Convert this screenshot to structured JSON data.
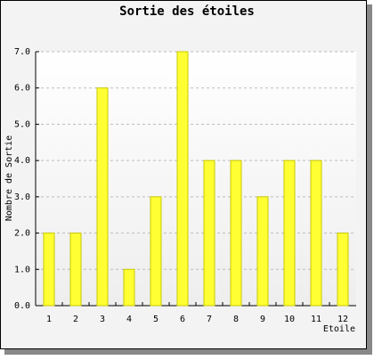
{
  "chart_data": {
    "type": "bar",
    "title": "Sortie des étoiles",
    "x_label": "Etoile",
    "y_label": "Nombre de Sortie",
    "categories": [
      "1",
      "2",
      "3",
      "4",
      "5",
      "6",
      "7",
      "8",
      "9",
      "10",
      "11",
      "12"
    ],
    "values": [
      2,
      2,
      6,
      1,
      3,
      7,
      4,
      4,
      3,
      4,
      4,
      2
    ],
    "color": "#ffff33",
    "ylim": [
      0,
      7
    ],
    "yticks": [
      {
        "value": 0,
        "label": "0.0"
      },
      {
        "value": 1,
        "label": "1.0"
      },
      {
        "value": 2,
        "label": "2.0"
      },
      {
        "value": 3,
        "label": "3.0"
      },
      {
        "value": 4,
        "label": "4.0"
      },
      {
        "value": 5,
        "label": "5.0"
      },
      {
        "value": 6,
        "label": "6.0"
      },
      {
        "value": 7,
        "label": "7.0"
      }
    ],
    "grid": true
  }
}
